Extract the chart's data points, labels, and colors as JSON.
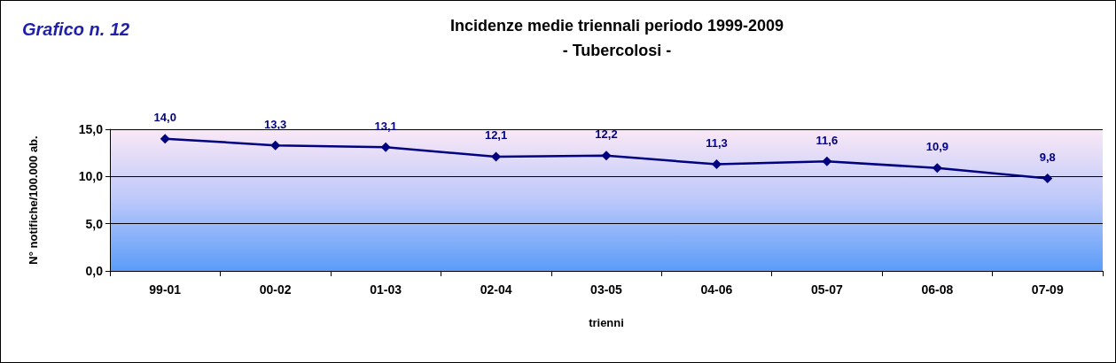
{
  "chart_data": {
    "type": "line",
    "title": "Incidenze medie triennali periodo 1999-2009",
    "subtitle": "- Tubercolosi -",
    "annotations": [
      "Grafico n. 12"
    ],
    "xlabel": "trienni",
    "ylabel": "N° notifiche/100.000 ab.",
    "categories": [
      "99-01",
      "00-02",
      "01-03",
      "02-04",
      "03-05",
      "04-06",
      "05-07",
      "06-08",
      "07-09"
    ],
    "series": [
      {
        "color": "#000080",
        "values": [
          14.0,
          13.3,
          13.1,
          12.1,
          12.2,
          11.3,
          11.6,
          10.9,
          9.8
        ],
        "value_labels": [
          "14,0",
          "13,3",
          "13,1",
          "12,1",
          "12,2",
          "11,3",
          "11,6",
          "10,9",
          "9,8"
        ]
      }
    ],
    "ylim": [
      0,
      15
    ],
    "yticks": [
      {
        "value": 0,
        "label": "0,0"
      },
      {
        "value": 5,
        "label": "5,0"
      },
      {
        "value": 10,
        "label": "10,0"
      },
      {
        "value": 15,
        "label": "15,0"
      }
    ],
    "grid": "y",
    "marker": "diamond",
    "line_style": "solid"
  }
}
